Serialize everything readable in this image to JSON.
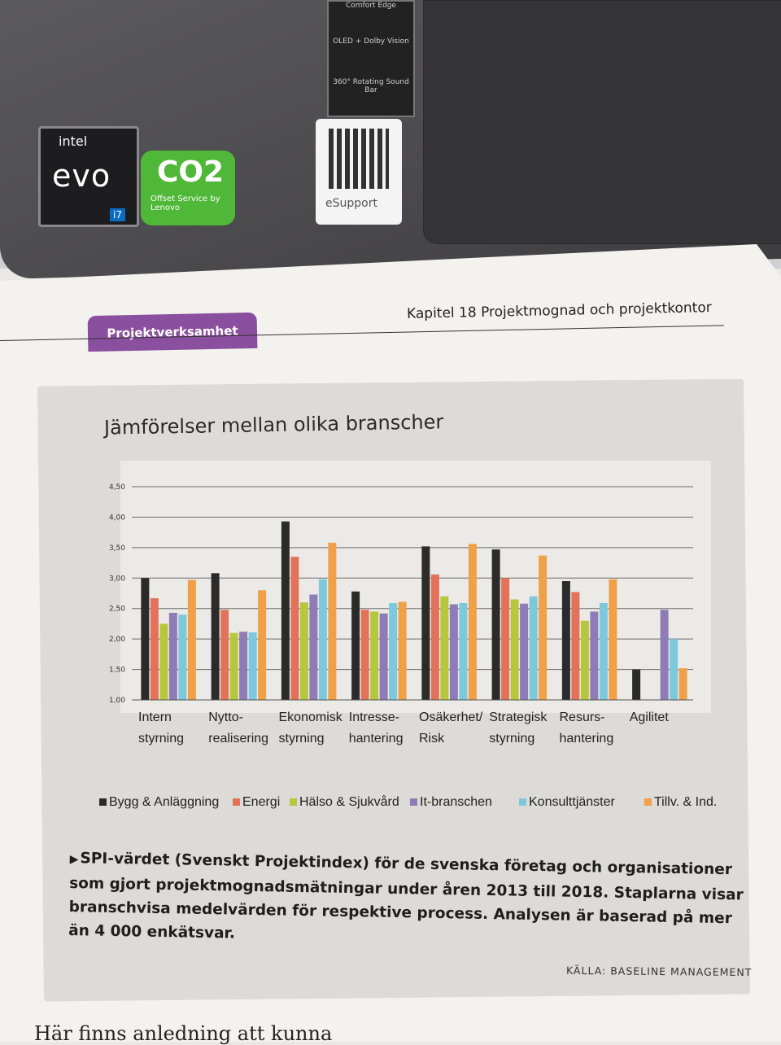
{
  "laptop": {
    "intel_sticker": {
      "brand": "intel",
      "line": "evo",
      "tier": "i7"
    },
    "co2_sticker": {
      "big": "CO2",
      "small": "Offset Service by Lenovo"
    },
    "oled_sticker": {
      "lines": [
        "Comfort Edge",
        "OLED + Dolby Vision",
        "360° Rotating Sound Bar"
      ]
    },
    "qr_sticker": {
      "label": "eSupport"
    }
  },
  "header": {
    "section_badge": "Projektverksamhet",
    "chapter": "Kapitel 18  Projektmognad och projektkontor"
  },
  "chart_data": {
    "type": "bar",
    "title": "Jämförelser mellan olika branscher",
    "categories": [
      [
        "Intern",
        "styrning"
      ],
      [
        "Nytto-",
        "realisering"
      ],
      [
        "Ekonomisk",
        "styrning"
      ],
      [
        "Intresse-",
        "hantering"
      ],
      [
        "Osäkerhet/",
        "Risk"
      ],
      [
        "Strategisk",
        "styrning"
      ],
      [
        "Resurs-",
        "hantering"
      ],
      [
        "Agilitet",
        ""
      ]
    ],
    "yticks": [
      "1,00",
      "1,50",
      "2,00",
      "2,50",
      "3,00",
      "3,50",
      "4,00",
      "4,50"
    ],
    "ylim": [
      1.0,
      4.5
    ],
    "series": [
      {
        "name": "Bygg & Anläggning",
        "color": "#2b2b2b",
        "values": [
          3.0,
          3.08,
          3.93,
          2.78,
          3.52,
          3.47,
          2.95,
          1.5
        ]
      },
      {
        "name": "Energi",
        "color": "#e2735a",
        "values": [
          2.67,
          2.48,
          3.35,
          2.48,
          3.06,
          3.0,
          2.77,
          null
        ]
      },
      {
        "name": "Hälso & Sjukvård",
        "color": "#b6c73e",
        "values": [
          2.25,
          2.1,
          2.6,
          2.45,
          2.7,
          2.65,
          2.3,
          null
        ]
      },
      {
        "name": "It-branschen",
        "color": "#8f7cb6",
        "values": [
          2.43,
          2.12,
          2.73,
          2.42,
          2.57,
          2.58,
          2.45,
          2.48
        ]
      },
      {
        "name": "Konsulttjänster",
        "color": "#7ec8db",
        "values": [
          2.4,
          2.11,
          2.98,
          2.59,
          2.59,
          2.7,
          2.59,
          2.0
        ]
      },
      {
        "name": "Tillv. & Ind.",
        "color": "#f0a048",
        "values": [
          2.97,
          2.8,
          3.58,
          2.61,
          3.56,
          3.37,
          2.98,
          1.52
        ]
      }
    ],
    "legend_position": "bottom"
  },
  "caption": {
    "arrow": "▶",
    "text": "SPI-värdet (Svenskt Projektindex) för de svenska företag och organisationer som gjort projektmognadsmätningar under åren 2013 till 2018. Staplarna visar branschvisa medelvärden för respektive process. Analysen är baserad på mer än 4 000 enkätsvar."
  },
  "source": "KÄLLA: BASELINE MANAGEMENT",
  "body_text": "Här finns anledning att kunna"
}
